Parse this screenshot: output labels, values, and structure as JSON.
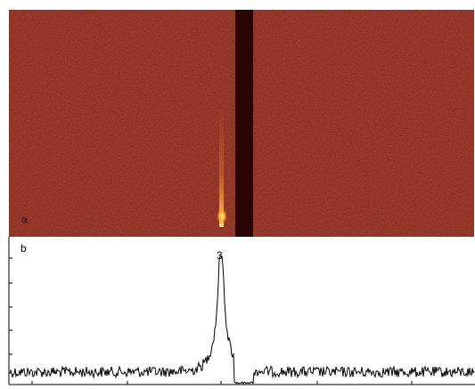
{
  "figure": {
    "panel_top_label": "a",
    "panel_bottom_label": "b",
    "peak_label": "3",
    "colors": {
      "heatmap_background": "#6b130d",
      "heatmap_hot": "#ffd36a",
      "beam_stop": "#2a0504",
      "trace": "#000000"
    }
  }
}
